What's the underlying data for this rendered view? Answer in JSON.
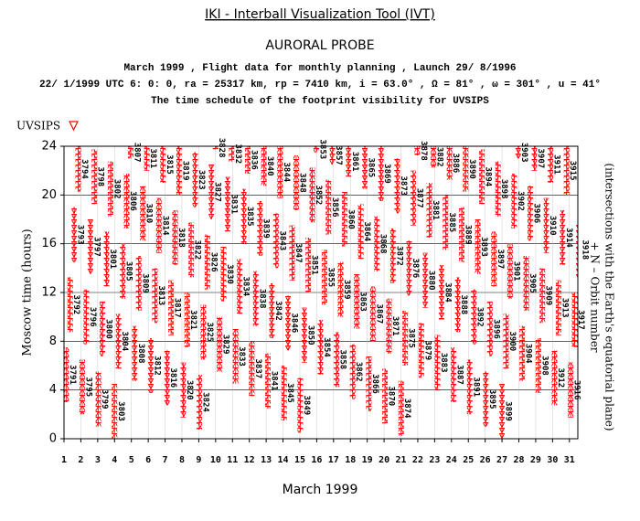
{
  "chart_data": {
    "type": "schedule",
    "title": "IKI - Interball Visualization Tool (IVT)",
    "subtitle": "AURORAL PROBE",
    "info": [
      "March 1999 ,  Flight data for monthly planning ,   Launch 29/ 8/1996",
      "22/ 1/1999 UTC  6: 0: 0, ra =  25317 km, rp =   7410 km, i = 63.0° , Ω =  81° , ω = 301° , u =  41°",
      "The time schedule of the footprint visibility for UVSIPS"
    ],
    "legend": "UVSIPS",
    "color": "#ff0000",
    "ylabel": "Moscow time (hours)",
    "xlabel": "March 1999",
    "y2label": [
      "+ N – Orbit number",
      "(intersections with the Earth's equatorial plane)"
    ],
    "xlim": [
      1,
      31.5
    ],
    "xticks": [
      1,
      2,
      3,
      4,
      5,
      6,
      7,
      8,
      9,
      10,
      11,
      12,
      13,
      14,
      15,
      16,
      17,
      18,
      19,
      20,
      21,
      22,
      23,
      24,
      25,
      26,
      27,
      28,
      29,
      30,
      31
    ],
    "ylim": [
      0,
      24
    ],
    "yticks": [
      0,
      4,
      8,
      12,
      16,
      20,
      24
    ],
    "grid": true,
    "orbits": [
      3791,
      3792,
      3793,
      3794,
      3795,
      3796,
      3797,
      3798,
      3799,
      3800,
      3801,
      3802,
      3803,
      3804,
      3805,
      3806,
      3807,
      3808,
      3809,
      3810,
      3811,
      3812,
      3813,
      3814,
      3815,
      3816,
      3817,
      3818,
      3819,
      3820,
      3821,
      3822,
      3823,
      3824,
      3825,
      3826,
      3827,
      3828,
      3829,
      3830,
      3831,
      3832,
      3833,
      3834,
      3835,
      3836,
      3837,
      3838,
      3839,
      3840,
      3841,
      3842,
      3843,
      3844,
      3845,
      3846,
      3847,
      3848,
      3849,
      3850,
      3851,
      3852,
      3853,
      3854,
      3855,
      3856,
      3857,
      3858,
      3859,
      3860,
      3861,
      3862,
      3863,
      3864,
      3865,
      3866,
      3867,
      3868,
      3869,
      3870,
      3871,
      3872,
      3873,
      3874,
      3875,
      3876,
      3877,
      3878,
      3879,
      3880,
      3881,
      3882,
      3883,
      3884,
      3885,
      3886,
      3887,
      3888,
      3889,
      3890,
      3891,
      3892,
      3893,
      3894,
      3895,
      3896,
      3897,
      3898,
      3899,
      3900,
      3901,
      3902,
      3903,
      3904,
      3905,
      3906,
      3907,
      3908,
      3909,
      3910,
      3911,
      3912,
      3913,
      3914,
      3915,
      3916,
      3917,
      3918
    ],
    "days": [
      1,
      1,
      1,
      1,
      2,
      2,
      2,
      2,
      3,
      3,
      3,
      3,
      4,
      4,
      4,
      4,
      4,
      5,
      5,
      5,
      5,
      6,
      6,
      6,
      6,
      7,
      7,
      7,
      7,
      8,
      8,
      8,
      8,
      9,
      9,
      9,
      9,
      9,
      10,
      10,
      10,
      10,
      11,
      11,
      11,
      11,
      12,
      12,
      12,
      12,
      13,
      13,
      13,
      13,
      14,
      14,
      14,
      14,
      15,
      15,
      15,
      15,
      15,
      16,
      16,
      16,
      16,
      17,
      17,
      17,
      17,
      18,
      18,
      18,
      18,
      19,
      19,
      19,
      19,
      20,
      20,
      20,
      20,
      21,
      21,
      21,
      21,
      21,
      22,
      22,
      22,
      22,
      23,
      23,
      23,
      23,
      24,
      24,
      24,
      24,
      25,
      25,
      25,
      25,
      26,
      26,
      26,
      26,
      27,
      27,
      27,
      27,
      27,
      28,
      28,
      28,
      28,
      29,
      29,
      29,
      29,
      30,
      30,
      30,
      30,
      31,
      31,
      31
    ],
    "start": [
      3,
      8.75,
      14.5,
      20.25,
      2,
      7.75,
      13.5,
      19.25,
      1,
      6.75,
      12.5,
      18.25,
      0,
      5.75,
      11.5,
      17.25,
      23,
      4.75,
      10.5,
      16.25,
      22,
      3.75,
      9.5,
      15.25,
      21,
      2.75,
      8.5,
      14.25,
      20,
      1.75,
      7.5,
      13.25,
      19,
      0.75,
      6.5,
      12.25,
      18,
      23.75,
      5.5,
      11.25,
      17,
      22.75,
      4.5,
      10.25,
      16,
      21.75,
      3.5,
      9.25,
      15,
      20.75,
      2.5,
      8.25,
      14,
      19.75,
      1.5,
      7.25,
      13,
      18.75,
      0.5,
      6.25,
      12,
      17.75,
      23.5,
      5.25,
      11,
      16.75,
      22.5,
      4.25,
      10,
      15.75,
      21.5,
      3.25,
      9,
      14.75,
      20.5,
      2.25,
      8,
      13.75,
      19.5,
      1.25,
      7,
      12.75,
      18.5,
      0.25,
      6,
      11.75,
      17.5,
      23.25,
      5,
      10.75,
      16.5,
      22.25,
      4,
      9.75,
      15.5,
      21.25,
      3,
      8.75,
      14.5,
      20.25,
      2,
      7.75,
      13.5,
      19.25,
      1,
      6.75,
      12.5,
      18.25,
      0,
      5.75,
      11.5,
      17.25,
      23,
      4.75,
      10.5,
      16.25,
      22,
      3.75,
      9.5,
      15.25,
      21,
      2.75,
      8.5,
      14.25,
      20,
      1.75,
      7.5,
      13.25
    ],
    "end": [
      7.5,
      13.25,
      19,
      24,
      6.5,
      12.25,
      18,
      23.75,
      5.5,
      11.25,
      17,
      22.75,
      4.5,
      10.25,
      16,
      21.75,
      24,
      9.25,
      15,
      20.75,
      24,
      8.25,
      14,
      19.75,
      24,
      7.25,
      13,
      18.75,
      24,
      6.25,
      12,
      17.75,
      23.5,
      5.25,
      11,
      16.75,
      22.5,
      24,
      10,
      15.75,
      21.5,
      24,
      9,
      14.75,
      20.5,
      24,
      8,
      13.75,
      19.5,
      24,
      7,
      12.75,
      18.5,
      24,
      6,
      11.75,
      17.5,
      23.25,
      5,
      10.75,
      16.5,
      22.25,
      24,
      9.75,
      15.5,
      21.25,
      24,
      8.75,
      14.5,
      20.25,
      24,
      7.75,
      13.5,
      19.25,
      24,
      6.75,
      12.5,
      18.25,
      24,
      5.75,
      11.5,
      17.25,
      23,
      4.75,
      10.5,
      16.25,
      22,
      24,
      9.5,
      15.25,
      21,
      24,
      8.5,
      14.25,
      20,
      24,
      7.5,
      13.25,
      19,
      24,
      6.5,
      12.25,
      18,
      23.75,
      5.5,
      11.25,
      17,
      22.75,
      4.5,
      10.25,
      16,
      21.75,
      24,
      9.25,
      15,
      20.75,
      24,
      8.25,
      14,
      19.75,
      24,
      7.25,
      13,
      18.75,
      24,
      6.25,
      12,
      17.75
    ]
  }
}
